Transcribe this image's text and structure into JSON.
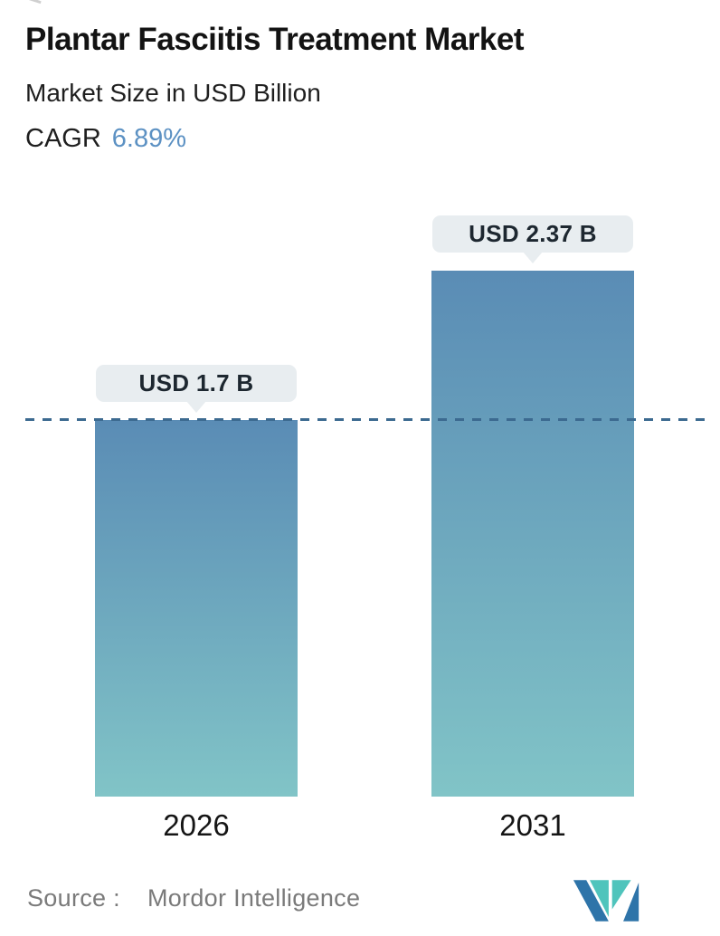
{
  "header": {
    "title": "Plantar Fasciitis Treatment Market",
    "subtitle": "Market Size in USD Billion",
    "cagr_label": "CAGR",
    "cagr_value": "6.89%",
    "cagr_value_color": "#5c91c3"
  },
  "chart_data": {
    "type": "bar",
    "categories": [
      "2026",
      "2031"
    ],
    "values": [
      1.7,
      2.37
    ],
    "value_labels": [
      "USD 1.7 B",
      "USD 2.37 B"
    ],
    "title": "Plantar Fasciitis Treatment Market",
    "subtitle": "Market Size in USD Billion",
    "unit": "USD Billion",
    "xlabel": "",
    "ylabel": "",
    "ylim": [
      0,
      2.5
    ],
    "grid": "off",
    "axes_visible": false,
    "legend_position": "none",
    "reference_line": {
      "value": 1.7,
      "style": "dashed",
      "color": "#3c6a90"
    },
    "bar_gradient_top": "#5a8cb5",
    "bar_gradient_bottom": "#81c4c7",
    "tooltip_bg": "#e8edf0"
  },
  "footer": {
    "source_label": "Source :",
    "source_name": "Mordor Intelligence",
    "logo_icon": "mordor-intelligence-logo",
    "logo_blue": "#2e74a9",
    "logo_teal": "#4fc4bc"
  }
}
